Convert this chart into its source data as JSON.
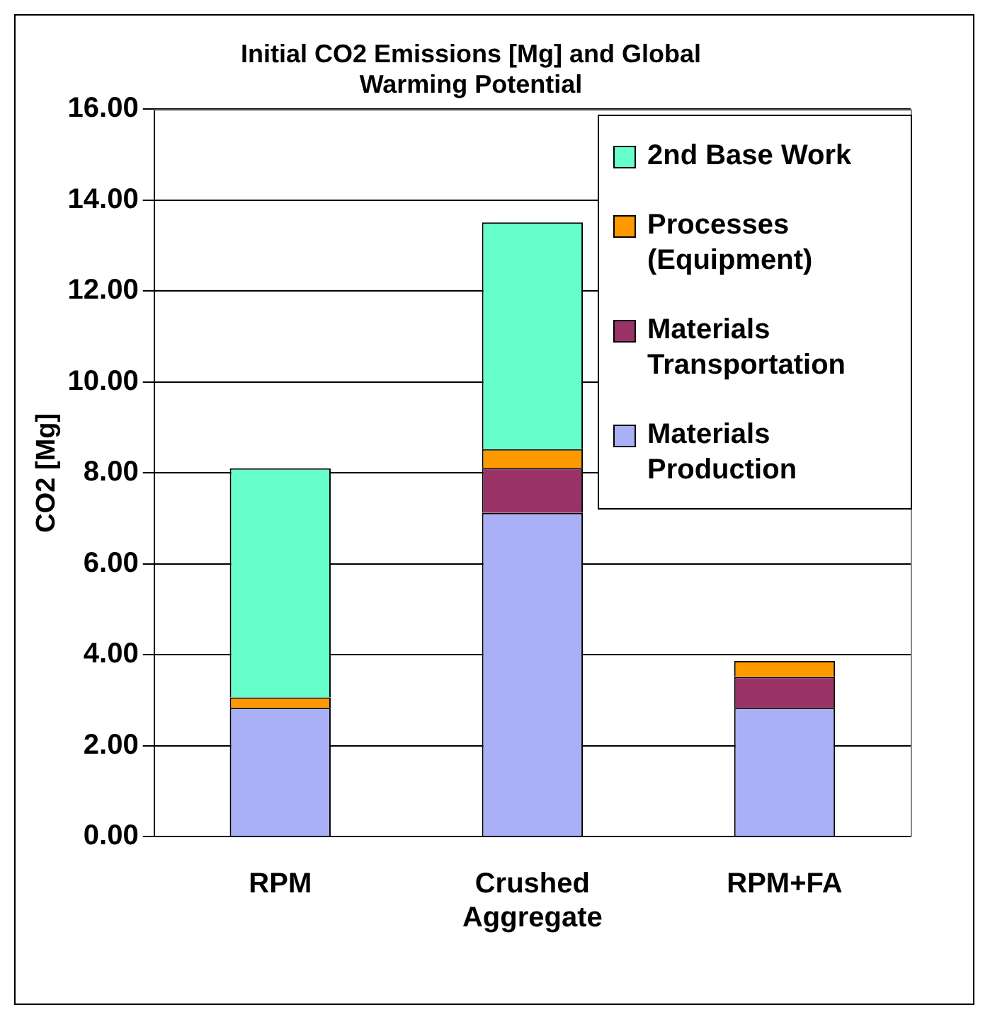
{
  "chart_data": {
    "type": "bar",
    "title": "Initial CO2 Emissions [Mg] and Global Warming Potential",
    "ylabel": "CO2 [Mg]",
    "categories": [
      "RPM",
      "Crushed Aggregate",
      "RPM+FA"
    ],
    "stacked": true,
    "series": [
      {
        "name": "Materials Production",
        "color": "#aab0f5",
        "values": [
          2.83,
          7.12,
          2.83
        ]
      },
      {
        "name": "Materials Transportation",
        "color": "#993366",
        "values": [
          null,
          0.99,
          0.68
        ]
      },
      {
        "name": "Processes (Equipment)",
        "color": "#ff9900",
        "values": [
          0.23,
          0.41,
          0.35
        ]
      },
      {
        "name": "2nd Base Work",
        "color": "#66ffcc",
        "values": [
          5.04,
          4.99,
          null
        ]
      }
    ],
    "ylim": [
      0,
      16
    ],
    "yticks": [
      {
        "value": 0,
        "label": "0.00"
      },
      {
        "value": 2,
        "label": "2.00"
      },
      {
        "value": 4,
        "label": "4.00"
      },
      {
        "value": 6,
        "label": "6.00"
      },
      {
        "value": 8,
        "label": "8.00"
      },
      {
        "value": 10,
        "label": "10.00"
      },
      {
        "value": 12,
        "label": "12.00"
      },
      {
        "value": 14,
        "label": "14.00"
      },
      {
        "value": 16,
        "label": "16.00"
      }
    ],
    "grid": "y",
    "legend": "top right"
  }
}
